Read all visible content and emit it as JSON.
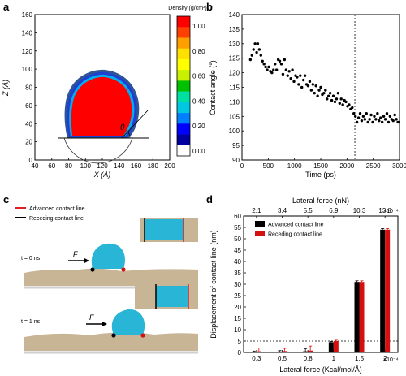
{
  "panels": {
    "a": "a",
    "b": "b",
    "c": "c",
    "d": "d"
  },
  "panel_a": {
    "xlabel": "X (Å)",
    "ylabel": "Z (Å)",
    "xticks": [
      "40",
      "60",
      "80",
      "100",
      "120",
      "140",
      "160",
      "180",
      "200"
    ],
    "yticks": [
      "0",
      "20",
      "40",
      "60",
      "80",
      "100",
      "120",
      "140",
      "160"
    ],
    "theta": "θ",
    "colorbar_title": "Density (g/cm³)",
    "colorbar_ticks": [
      "1.00",
      "0.80",
      "0.60",
      "0.40",
      "0.20",
      "0.00"
    ],
    "colors": {
      "core": "#ff0000",
      "ring1": "#00b0f0",
      "ring2": "#1f3fd0",
      "ring3": "#2f5597",
      "cb": [
        "#ff0000",
        "#ff4000",
        "#ffa000",
        "#ffe000",
        "#ffff00",
        "#c8f000",
        "#00c000",
        "#00e0a0",
        "#00c8e0",
        "#0080ff",
        "#0000ff",
        "#0000a0",
        "#ffffff"
      ]
    }
  },
  "panel_b_chart": {
    "type": "scatter",
    "xlabel": "Time (ps)",
    "ylabel": "Contact angle (°)",
    "xticks": [
      "0",
      "500",
      "1000",
      "1500",
      "2000",
      "2500",
      "3000"
    ],
    "yticks": [
      "90",
      "95",
      "100",
      "105",
      "110",
      "115",
      "120",
      "125",
      "130",
      "135",
      "140"
    ],
    "xlim": [
      0,
      3000
    ],
    "ylim": [
      90,
      140
    ],
    "vline_x": 2150,
    "points": [
      [
        160,
        124.5
      ],
      [
        190,
        126
      ],
      [
        220,
        128
      ],
      [
        250,
        130
      ],
      [
        280,
        127
      ],
      [
        300,
        130
      ],
      [
        330,
        128
      ],
      [
        360,
        126
      ],
      [
        390,
        124
      ],
      [
        420,
        123
      ],
      [
        450,
        122
      ],
      [
        480,
        121
      ],
      [
        510,
        122
      ],
      [
        540,
        120.5
      ],
      [
        570,
        120
      ],
      [
        600,
        121
      ],
      [
        630,
        123
      ],
      [
        660,
        121
      ],
      [
        690,
        124.5
      ],
      [
        720,
        124
      ],
      [
        750,
        123
      ],
      [
        780,
        119.5
      ],
      [
        810,
        124.5
      ],
      [
        840,
        121
      ],
      [
        870,
        119
      ],
      [
        900,
        120.5
      ],
      [
        930,
        118
      ],
      [
        960,
        121
      ],
      [
        990,
        117
      ],
      [
        1020,
        119
      ],
      [
        1050,
        118.5
      ],
      [
        1080,
        116
      ],
      [
        1110,
        119
      ],
      [
        1140,
        115
      ],
      [
        1170,
        117.5
      ],
      [
        1200,
        119
      ],
      [
        1230,
        116
      ],
      [
        1260,
        115.5
      ],
      [
        1290,
        117
      ],
      [
        1320,
        114
      ],
      [
        1350,
        116
      ],
      [
        1380,
        113
      ],
      [
        1410,
        115.5
      ],
      [
        1440,
        112
      ],
      [
        1470,
        114
      ],
      [
        1500,
        115
      ],
      [
        1530,
        112.5
      ],
      [
        1560,
        113
      ],
      [
        1590,
        114
      ],
      [
        1620,
        111
      ],
      [
        1650,
        112
      ],
      [
        1680,
        113
      ],
      [
        1710,
        110.5
      ],
      [
        1740,
        112
      ],
      [
        1770,
        110
      ],
      [
        1800,
        111
      ],
      [
        1830,
        113
      ],
      [
        1860,
        109.5
      ],
      [
        1890,
        111
      ],
      [
        1920,
        109
      ],
      [
        1950,
        110.5
      ],
      [
        1980,
        110
      ],
      [
        2010,
        108.5
      ],
      [
        2040,
        109
      ],
      [
        2070,
        107.5
      ],
      [
        2100,
        108
      ],
      [
        2130,
        106
      ],
      [
        2160,
        105
      ],
      [
        2190,
        103
      ],
      [
        2220,
        104.5
      ],
      [
        2250,
        106
      ],
      [
        2280,
        103.5
      ],
      [
        2310,
        105
      ],
      [
        2340,
        104
      ],
      [
        2370,
        106
      ],
      [
        2400,
        103
      ],
      [
        2430,
        104
      ],
      [
        2460,
        105.5
      ],
      [
        2490,
        103
      ],
      [
        2520,
        105
      ],
      [
        2550,
        104
      ],
      [
        2580,
        106
      ],
      [
        2610,
        103.5
      ],
      [
        2640,
        104.5
      ],
      [
        2670,
        103
      ],
      [
        2700,
        105
      ],
      [
        2730,
        104
      ],
      [
        2760,
        106
      ],
      [
        2790,
        103
      ],
      [
        2820,
        105
      ],
      [
        2850,
        104
      ],
      [
        2880,
        103.5
      ],
      [
        2910,
        105.5
      ],
      [
        2940,
        104
      ],
      [
        2970,
        103
      ]
    ]
  },
  "panel_c": {
    "legend": [
      "Advanced contact line",
      "Receding contact line"
    ],
    "time_top": "t = 0 ns",
    "time_bottom": "t = 1 ns",
    "force": "F",
    "colors": {
      "advanced": "#e02020",
      "receding": "#000000",
      "droplet": "#29b6d6",
      "substrate": "#c8b596"
    }
  },
  "panel_d_chart": {
    "type": "bar",
    "top_axis_label": "Lateral force (nN)",
    "top_ticks": [
      "2.1",
      "3.4",
      "5.5",
      "6.9",
      "10.3",
      "13.8"
    ],
    "exponent_top": "×10⁻⁴",
    "exponent_bottom": "×10⁻⁴",
    "xlabel": "Lateral force (Kcal/mol/Å)",
    "ylabel": "Displacement of contact line (nm)",
    "categories": [
      "0.3",
      "0.5",
      "0.8",
      "1",
      "1.5",
      "2"
    ],
    "yticks": [
      "0",
      "5",
      "10",
      "15",
      "20",
      "25",
      "30",
      "35",
      "40",
      "45",
      "50",
      "55",
      "60"
    ],
    "ylim": [
      0,
      60
    ],
    "hline_y": 5,
    "series": [
      {
        "name": "Advanced contact line",
        "values": [
          0.3,
          0.4,
          0.5,
          4.5,
          31,
          54
        ]
      },
      {
        "name": "Receding contact line",
        "values": [
          0.5,
          0.6,
          0.8,
          5.0,
          31,
          54
        ]
      }
    ],
    "errors": [
      [
        0.3,
        0.4,
        1.2,
        0.3,
        0.5,
        0.5
      ],
      [
        1.5,
        1.2,
        2.0,
        0.4,
        0.5,
        0.5
      ]
    ],
    "colors": [
      "#000000",
      "#d41010"
    ]
  }
}
